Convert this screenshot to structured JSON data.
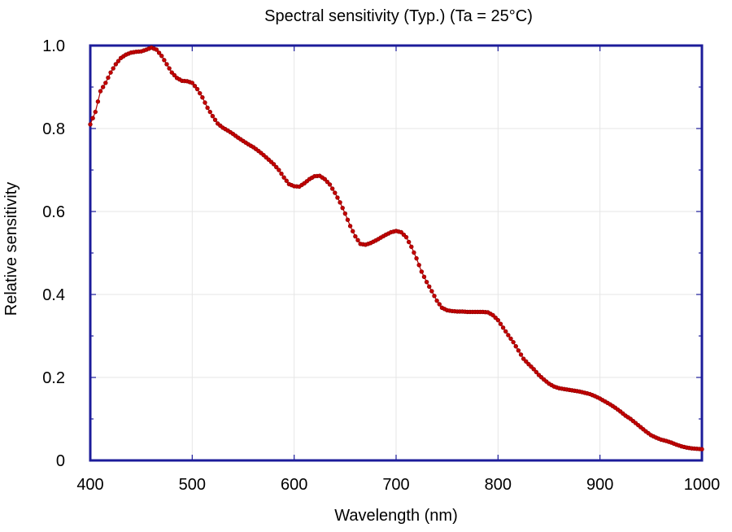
{
  "chart_data": {
    "type": "scatter",
    "title": "Spectral sensitivity (Typ.) (Ta = 25°C)",
    "xlabel": "Wavelength (nm)",
    "ylabel": "Relative sensitivity",
    "xlim": [
      400,
      1000
    ],
    "ylim": [
      0,
      1.0
    ],
    "x_ticks": [
      400,
      500,
      600,
      700,
      800,
      900,
      1000
    ],
    "x_tick_labels": [
      "400",
      "500",
      "600",
      "700",
      "800",
      "900",
      "1000"
    ],
    "y_ticks": [
      0,
      0.2,
      0.4,
      0.6,
      0.8,
      1.0
    ],
    "y_tick_labels": [
      "0",
      "0.2",
      "0.4",
      "0.6",
      "0.8",
      "1.0"
    ],
    "grid": true,
    "colors": {
      "series": "#c40000",
      "frame": "#1c1c9a",
      "grid": "#e6e6e6"
    },
    "series": [
      {
        "x": [
          400,
          405,
          410,
          415,
          420,
          425,
          430,
          435,
          440,
          445,
          450,
          455,
          460,
          465,
          470,
          475,
          480,
          485,
          490,
          495,
          500,
          505,
          510,
          515,
          520,
          525,
          530,
          535,
          540,
          545,
          550,
          555,
          560,
          565,
          570,
          575,
          580,
          585,
          590,
          595,
          600,
          605,
          610,
          615,
          620,
          625,
          630,
          635,
          640,
          645,
          650,
          655,
          660,
          665,
          670,
          675,
          680,
          685,
          690,
          695,
          700,
          705,
          710,
          715,
          720,
          725,
          730,
          735,
          740,
          745,
          750,
          755,
          760,
          765,
          770,
          775,
          780,
          785,
          790,
          795,
          800,
          805,
          810,
          815,
          820,
          825,
          830,
          835,
          840,
          845,
          850,
          855,
          860,
          865,
          870,
          875,
          880,
          885,
          890,
          895,
          900,
          905,
          910,
          915,
          920,
          925,
          930,
          935,
          940,
          945,
          950,
          955,
          960,
          965,
          970,
          975,
          980,
          985,
          990,
          995,
          1000
        ],
        "values": [
          0.81,
          0.84,
          0.89,
          0.91,
          0.935,
          0.955,
          0.97,
          0.978,
          0.983,
          0.985,
          0.986,
          0.99,
          0.995,
          0.99,
          0.975,
          0.955,
          0.935,
          0.922,
          0.915,
          0.914,
          0.91,
          0.895,
          0.875,
          0.85,
          0.83,
          0.812,
          0.802,
          0.795,
          0.787,
          0.778,
          0.77,
          0.762,
          0.755,
          0.746,
          0.736,
          0.725,
          0.714,
          0.7,
          0.682,
          0.666,
          0.661,
          0.66,
          0.668,
          0.678,
          0.685,
          0.686,
          0.678,
          0.665,
          0.645,
          0.622,
          0.595,
          0.565,
          0.54,
          0.522,
          0.52,
          0.524,
          0.53,
          0.537,
          0.544,
          0.55,
          0.553,
          0.55,
          0.538,
          0.515,
          0.487,
          0.455,
          0.43,
          0.408,
          0.385,
          0.368,
          0.362,
          0.36,
          0.359,
          0.359,
          0.358,
          0.358,
          0.358,
          0.358,
          0.357,
          0.35,
          0.338,
          0.32,
          0.302,
          0.285,
          0.265,
          0.245,
          0.232,
          0.22,
          0.206,
          0.195,
          0.185,
          0.178,
          0.174,
          0.172,
          0.17,
          0.168,
          0.166,
          0.163,
          0.16,
          0.155,
          0.149,
          0.142,
          0.135,
          0.127,
          0.118,
          0.108,
          0.1,
          0.09,
          0.08,
          0.07,
          0.061,
          0.055,
          0.05,
          0.047,
          0.043,
          0.038,
          0.034,
          0.031,
          0.029,
          0.028,
          0.027
        ]
      }
    ]
  }
}
